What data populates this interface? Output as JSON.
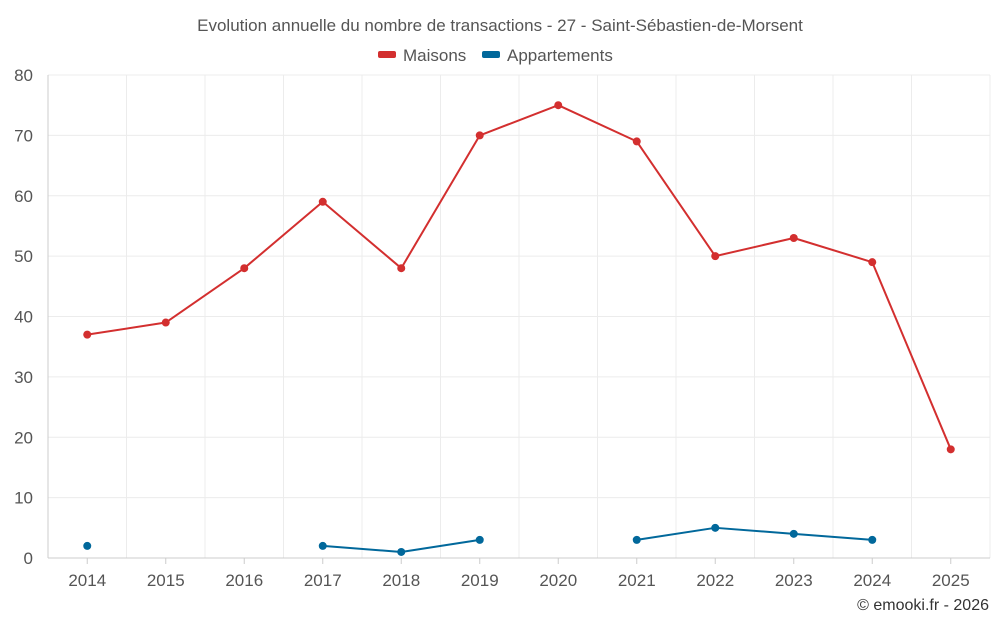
{
  "chart_data": {
    "type": "line",
    "title": "Evolution annuelle du nombre de transactions - 27 - Saint-Sébastien-de-Morsent",
    "categories": [
      "2014",
      "2015",
      "2016",
      "2017",
      "2018",
      "2019",
      "2020",
      "2021",
      "2022",
      "2023",
      "2024",
      "2025"
    ],
    "series": [
      {
        "name": "Maisons",
        "color": "#d32f2f",
        "values": [
          37,
          39,
          48,
          59,
          48,
          70,
          75,
          69,
          50,
          53,
          49,
          18
        ]
      },
      {
        "name": "Appartements",
        "color": "#01689b",
        "values": [
          2,
          null,
          null,
          2,
          1,
          3,
          null,
          3,
          5,
          4,
          3,
          null
        ]
      }
    ],
    "ylim": [
      0,
      80
    ],
    "yticks": [
      0,
      10,
      20,
      30,
      40,
      50,
      60,
      70,
      80
    ],
    "grid": true,
    "legend": "top-center",
    "xlabel": "",
    "ylabel": ""
  },
  "credit": "© emooki.fr - 2026"
}
